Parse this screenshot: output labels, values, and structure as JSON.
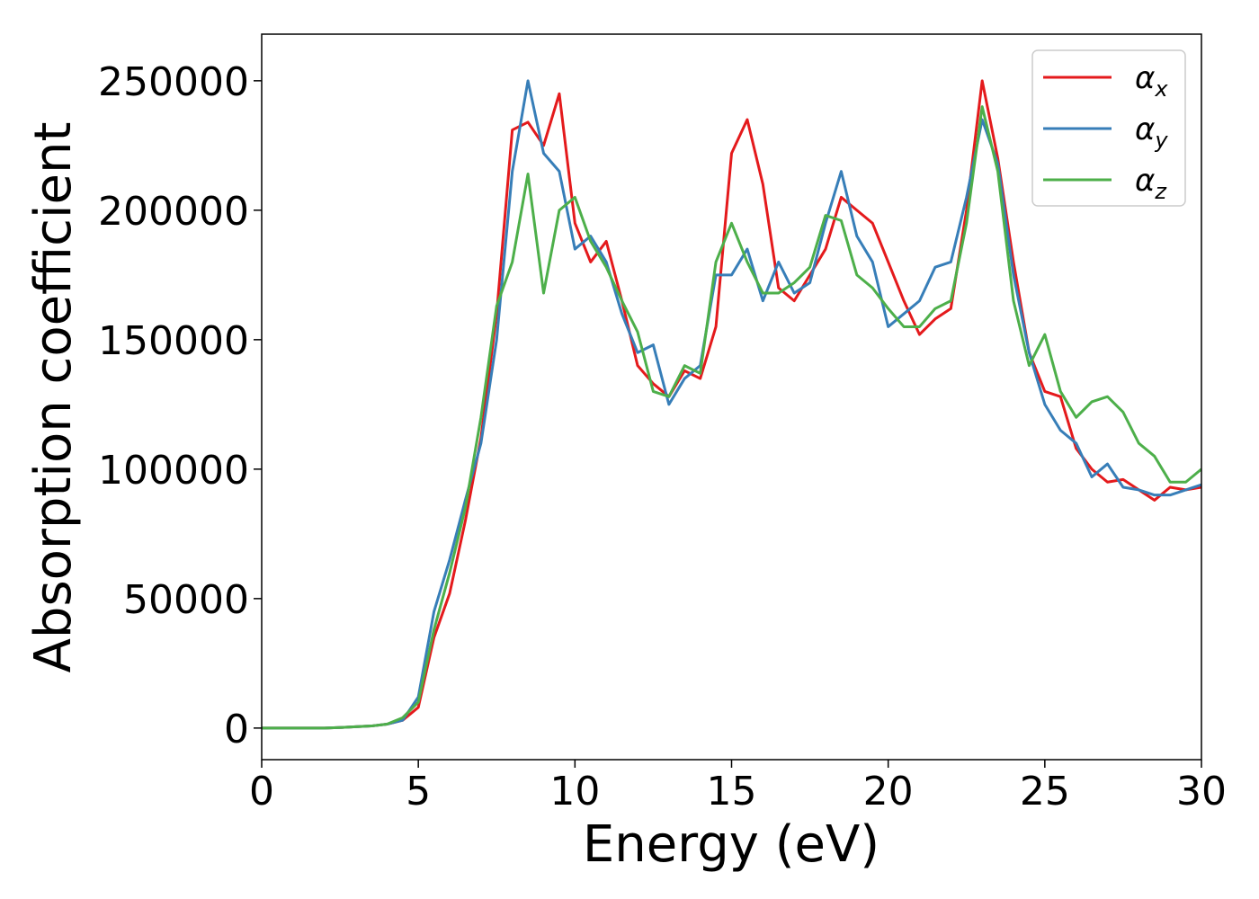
{
  "chart_data": {
    "type": "line",
    "xlabel": "Energy (eV)",
    "ylabel": "Absorption coefficient",
    "x": [
      0,
      0.5,
      1,
      1.5,
      2,
      2.5,
      3,
      3.5,
      4,
      4.5,
      5,
      5.5,
      6,
      6.5,
      7,
      7.5,
      8,
      8.5,
      9,
      9.5,
      10,
      10.5,
      11,
      11.5,
      12,
      12.5,
      13,
      13.5,
      14,
      14.5,
      15,
      15.5,
      16,
      16.5,
      17,
      17.5,
      18,
      18.5,
      19,
      19.5,
      20,
      20.5,
      21,
      21.5,
      22,
      22.5,
      23,
      23.5,
      24,
      24.5,
      25,
      25.5,
      26,
      26.5,
      27,
      27.5,
      28,
      28.5,
      29,
      29.5,
      30
    ],
    "series": [
      {
        "name": "αx",
        "color": "#e41a1c",
        "values": [
          0,
          0,
          0,
          0,
          0,
          200,
          500,
          800,
          1500,
          3000,
          8000,
          35000,
          52000,
          80000,
          112000,
          160000,
          231000,
          234000,
          225000,
          245000,
          195000,
          180000,
          188000,
          165000,
          140000,
          133000,
          128000,
          138000,
          135000,
          155000,
          222000,
          235000,
          210000,
          170000,
          165000,
          175000,
          185000,
          205000,
          200000,
          195000,
          180000,
          165000,
          152000,
          158000,
          162000,
          200000,
          250000,
          220000,
          180000,
          145000,
          130000,
          128000,
          108000,
          100000,
          95000,
          96000,
          92000,
          88000,
          93000,
          92000,
          93000
        ]
      },
      {
        "name": "αy",
        "color": "#377eb8",
        "values": [
          0,
          0,
          0,
          0,
          0,
          200,
          500,
          800,
          1500,
          3000,
          12000,
          45000,
          65000,
          88000,
          110000,
          150000,
          215000,
          250000,
          222000,
          215000,
          185000,
          190000,
          180000,
          160000,
          145000,
          148000,
          125000,
          135000,
          140000,
          175000,
          175000,
          185000,
          165000,
          180000,
          168000,
          172000,
          195000,
          215000,
          190000,
          180000,
          155000,
          160000,
          165000,
          178000,
          180000,
          205000,
          235000,
          218000,
          175000,
          145000,
          125000,
          115000,
          110000,
          97000,
          102000,
          93000,
          92000,
          90000,
          90000,
          92000,
          94000
        ]
      },
      {
        "name": "αz",
        "color": "#4daf4a",
        "values": [
          0,
          0,
          0,
          0,
          0,
          200,
          500,
          800,
          1500,
          4000,
          10000,
          38000,
          60000,
          85000,
          120000,
          163000,
          180000,
          214000,
          168000,
          200000,
          205000,
          188000,
          178000,
          165000,
          153000,
          130000,
          128000,
          140000,
          137000,
          180000,
          195000,
          180000,
          168000,
          168000,
          172000,
          178000,
          198000,
          196000,
          175000,
          170000,
          162000,
          155000,
          155000,
          162000,
          165000,
          195000,
          240000,
          215000,
          165000,
          140000,
          152000,
          130000,
          120000,
          126000,
          128000,
          122000,
          110000,
          105000,
          95000,
          95000,
          100000
        ]
      }
    ],
    "xlim": [
      0,
      30
    ],
    "xticks": [
      0,
      5,
      10,
      15,
      20,
      25,
      30
    ],
    "ylim": [
      -12200,
      268000
    ],
    "yticks": [
      0,
      50000,
      100000,
      150000,
      200000,
      250000
    ],
    "legend": "upper right"
  }
}
